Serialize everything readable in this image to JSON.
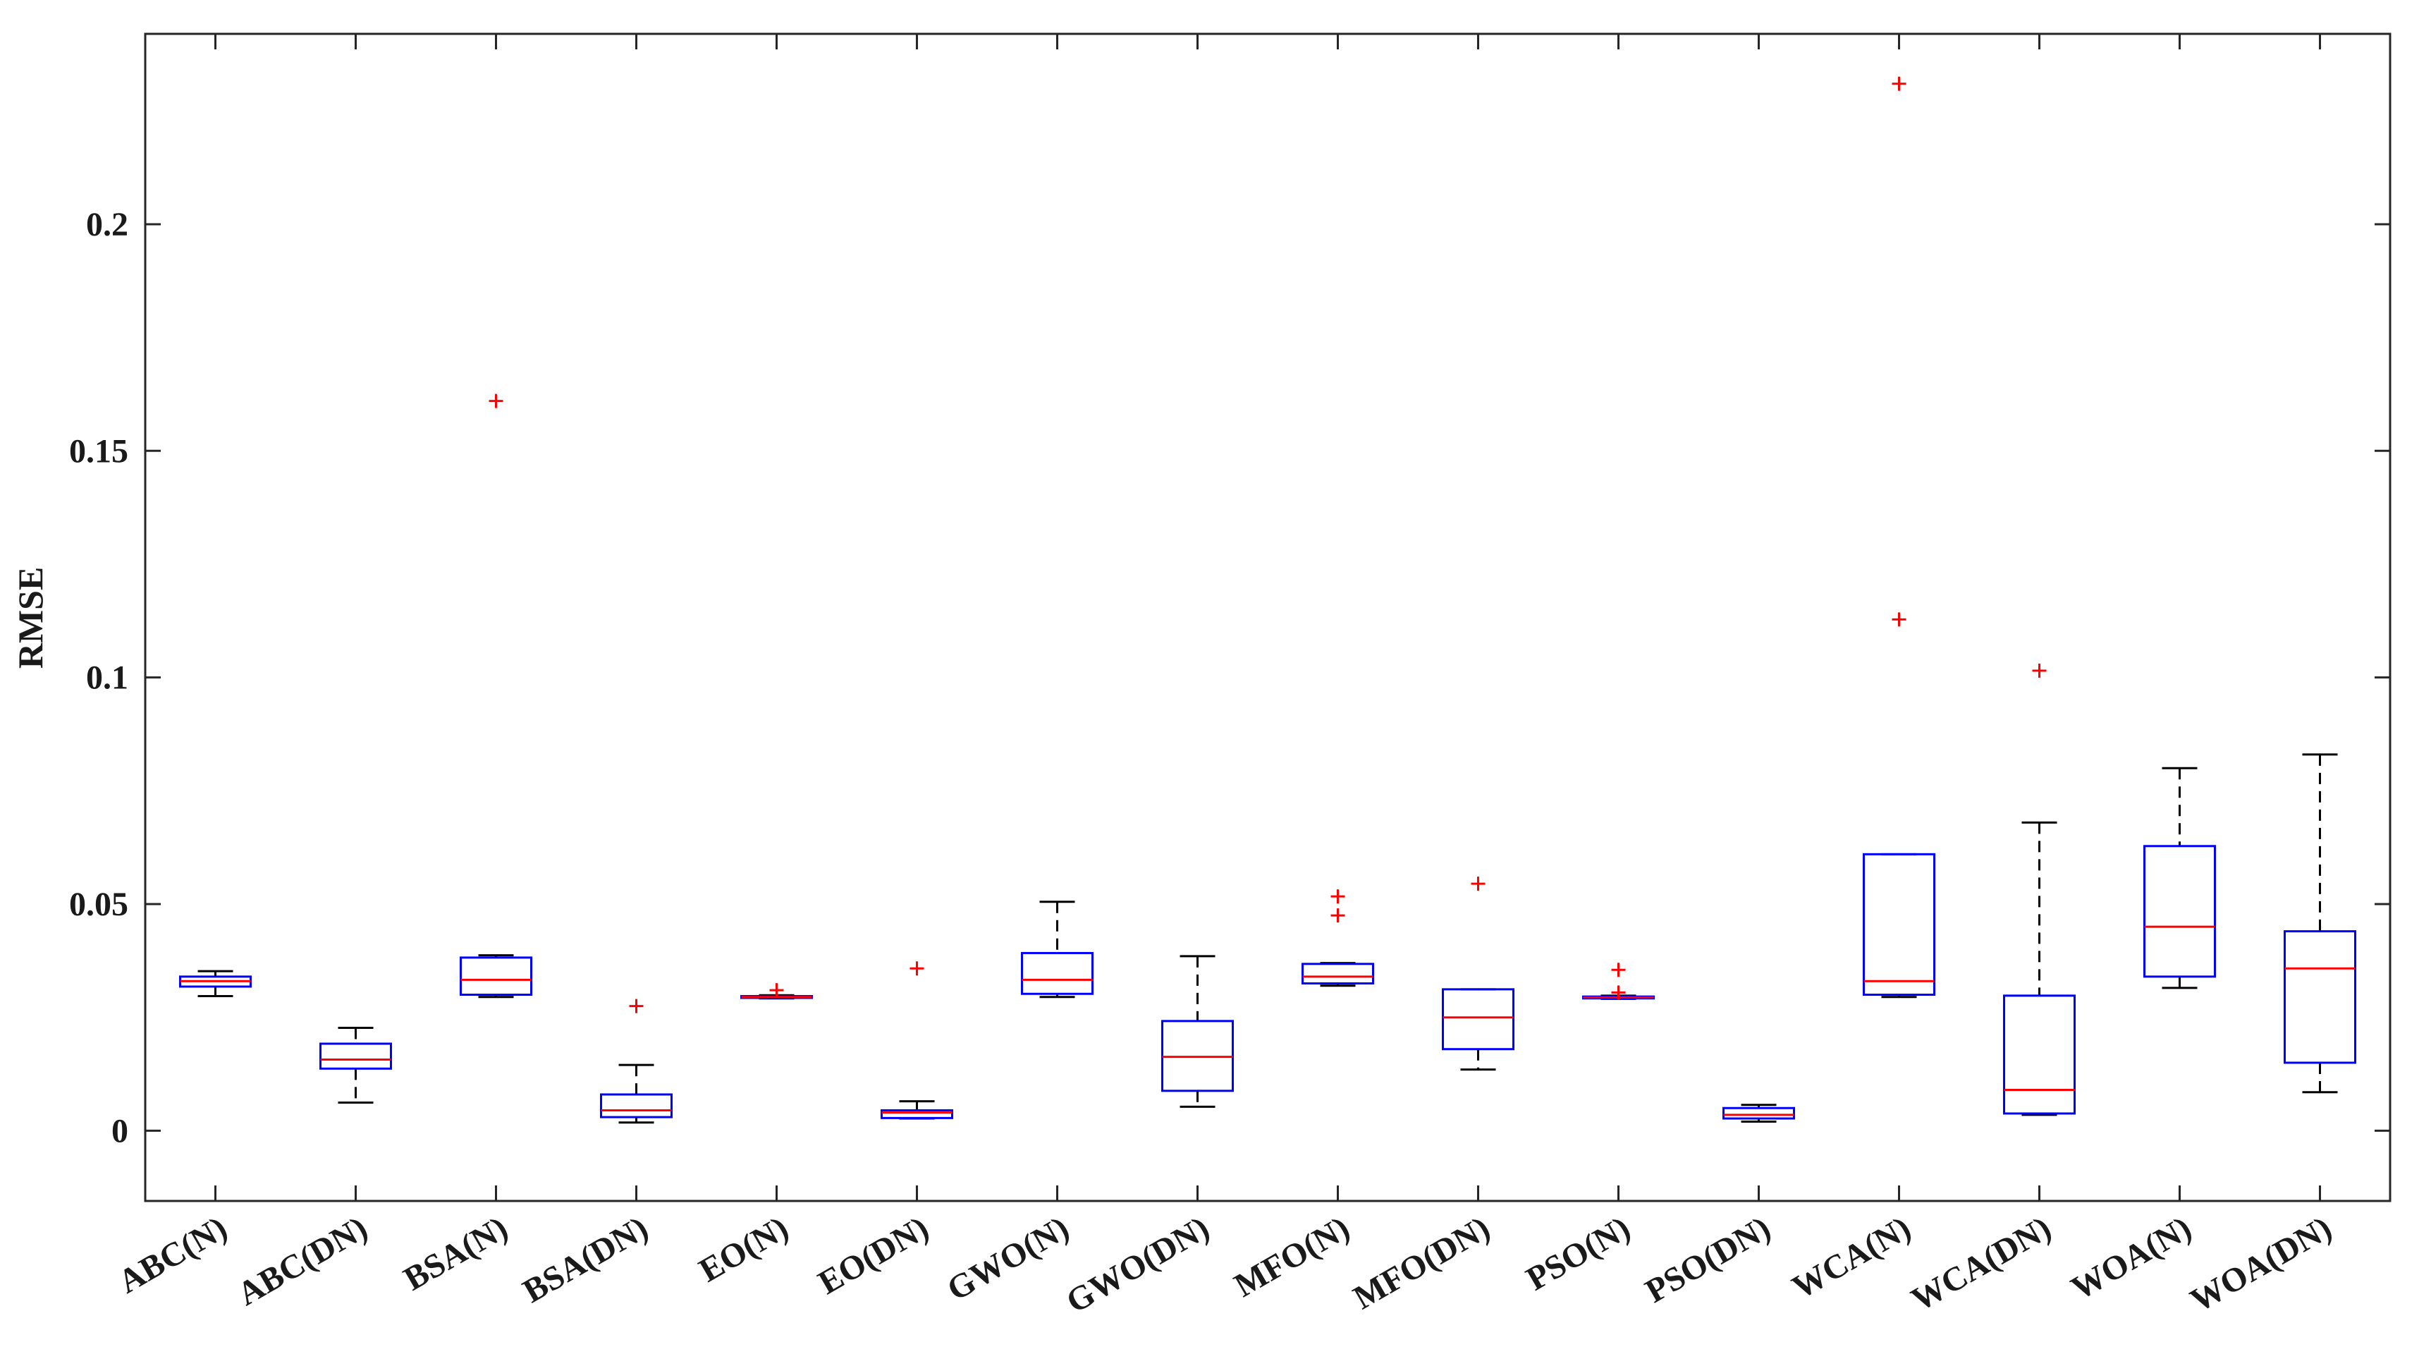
{
  "chart_data": {
    "type": "boxplot",
    "title": "",
    "xlabel": "",
    "ylabel": "RMSE",
    "ylim": [
      -0.0155,
      0.242
    ],
    "yticks": [
      0,
      0.05,
      0.1,
      0.15,
      0.2
    ],
    "ytick_labels": [
      "0",
      "0.05",
      "0.1",
      "0.15",
      "0.2"
    ],
    "grid": false,
    "colors": {
      "box": "#0000ff",
      "median": "#ff0000",
      "whisker": "#000000",
      "outlier": "#ff0000",
      "axis": "#262626"
    },
    "categories": [
      "ABC(N)",
      "ABC(DN)",
      "BSA(N)",
      "BSA(DN)",
      "EO(N)",
      "EO(DN)",
      "GWO(N)",
      "GWO(DN)",
      "MFO(N)",
      "MFO(DN)",
      "PSO(N)",
      "PSO(DN)",
      "WCA(N)",
      "WCA(DN)",
      "WOA(N)",
      "WOA(DN)"
    ],
    "boxes": [
      {
        "label": "ABC(N)",
        "whisker_low": 0.0297,
        "q1": 0.0318,
        "median": 0.033,
        "q3": 0.034,
        "whisker_high": 0.0352,
        "outliers": []
      },
      {
        "label": "ABC(DN)",
        "whisker_low": 0.0062,
        "q1": 0.0137,
        "median": 0.0157,
        "q3": 0.0192,
        "whisker_high": 0.0227,
        "outliers": []
      },
      {
        "label": "BSA(N)",
        "whisker_low": 0.0295,
        "q1": 0.03,
        "median": 0.0333,
        "q3": 0.0382,
        "whisker_high": 0.0387,
        "outliers": [
          0.161
        ]
      },
      {
        "label": "BSA(DN)",
        "whisker_low": 0.0018,
        "q1": 0.003,
        "median": 0.0045,
        "q3": 0.008,
        "whisker_high": 0.0145,
        "outliers": [
          0.0275
        ]
      },
      {
        "label": "EO(N)",
        "whisker_low": 0.0292,
        "q1": 0.0293,
        "median": 0.0295,
        "q3": 0.0297,
        "whisker_high": 0.0299,
        "outliers": [
          0.031
        ]
      },
      {
        "label": "EO(DN)",
        "whisker_low": 0.0027,
        "q1": 0.0028,
        "median": 0.004,
        "q3": 0.0045,
        "whisker_high": 0.0065,
        "outliers": [
          0.0358
        ]
      },
      {
        "label": "GWO(N)",
        "whisker_low": 0.0295,
        "q1": 0.0302,
        "median": 0.0333,
        "q3": 0.0392,
        "whisker_high": 0.0505,
        "outliers": []
      },
      {
        "label": "GWO(DN)",
        "whisker_low": 0.0053,
        "q1": 0.0088,
        "median": 0.0163,
        "q3": 0.0242,
        "whisker_high": 0.0385,
        "outliers": []
      },
      {
        "label": "MFO(N)",
        "whisker_low": 0.032,
        "q1": 0.0325,
        "median": 0.034,
        "q3": 0.0368,
        "whisker_high": 0.037,
        "outliers": [
          0.0517,
          0.0475
        ]
      },
      {
        "label": "MFO(DN)",
        "whisker_low": 0.0135,
        "q1": 0.018,
        "median": 0.025,
        "q3": 0.0312,
        "whisker_high": 0.0312,
        "outliers": [
          0.0545
        ]
      },
      {
        "label": "PSO(N)",
        "whisker_low": 0.0291,
        "q1": 0.0292,
        "median": 0.0294,
        "q3": 0.0296,
        "whisker_high": 0.0298,
        "outliers": [
          0.0355,
          0.0305
        ]
      },
      {
        "label": "PSO(DN)",
        "whisker_low": 0.002,
        "q1": 0.0027,
        "median": 0.0035,
        "q3": 0.005,
        "whisker_high": 0.0057,
        "outliers": []
      },
      {
        "label": "WCA(N)",
        "whisker_low": 0.0295,
        "q1": 0.03,
        "median": 0.033,
        "q3": 0.061,
        "whisker_high": 0.061,
        "outliers": [
          0.231,
          0.1128
        ]
      },
      {
        "label": "WCA(DN)",
        "whisker_low": 0.0035,
        "q1": 0.0038,
        "median": 0.009,
        "q3": 0.0298,
        "whisker_high": 0.068,
        "outliers": [
          0.1015
        ]
      },
      {
        "label": "WOA(N)",
        "whisker_low": 0.0315,
        "q1": 0.034,
        "median": 0.045,
        "q3": 0.0628,
        "whisker_high": 0.08,
        "outliers": []
      },
      {
        "label": "WOA(DN)",
        "whisker_low": 0.0085,
        "q1": 0.015,
        "median": 0.0358,
        "q3": 0.044,
        "whisker_high": 0.083,
        "outliers": []
      }
    ]
  }
}
